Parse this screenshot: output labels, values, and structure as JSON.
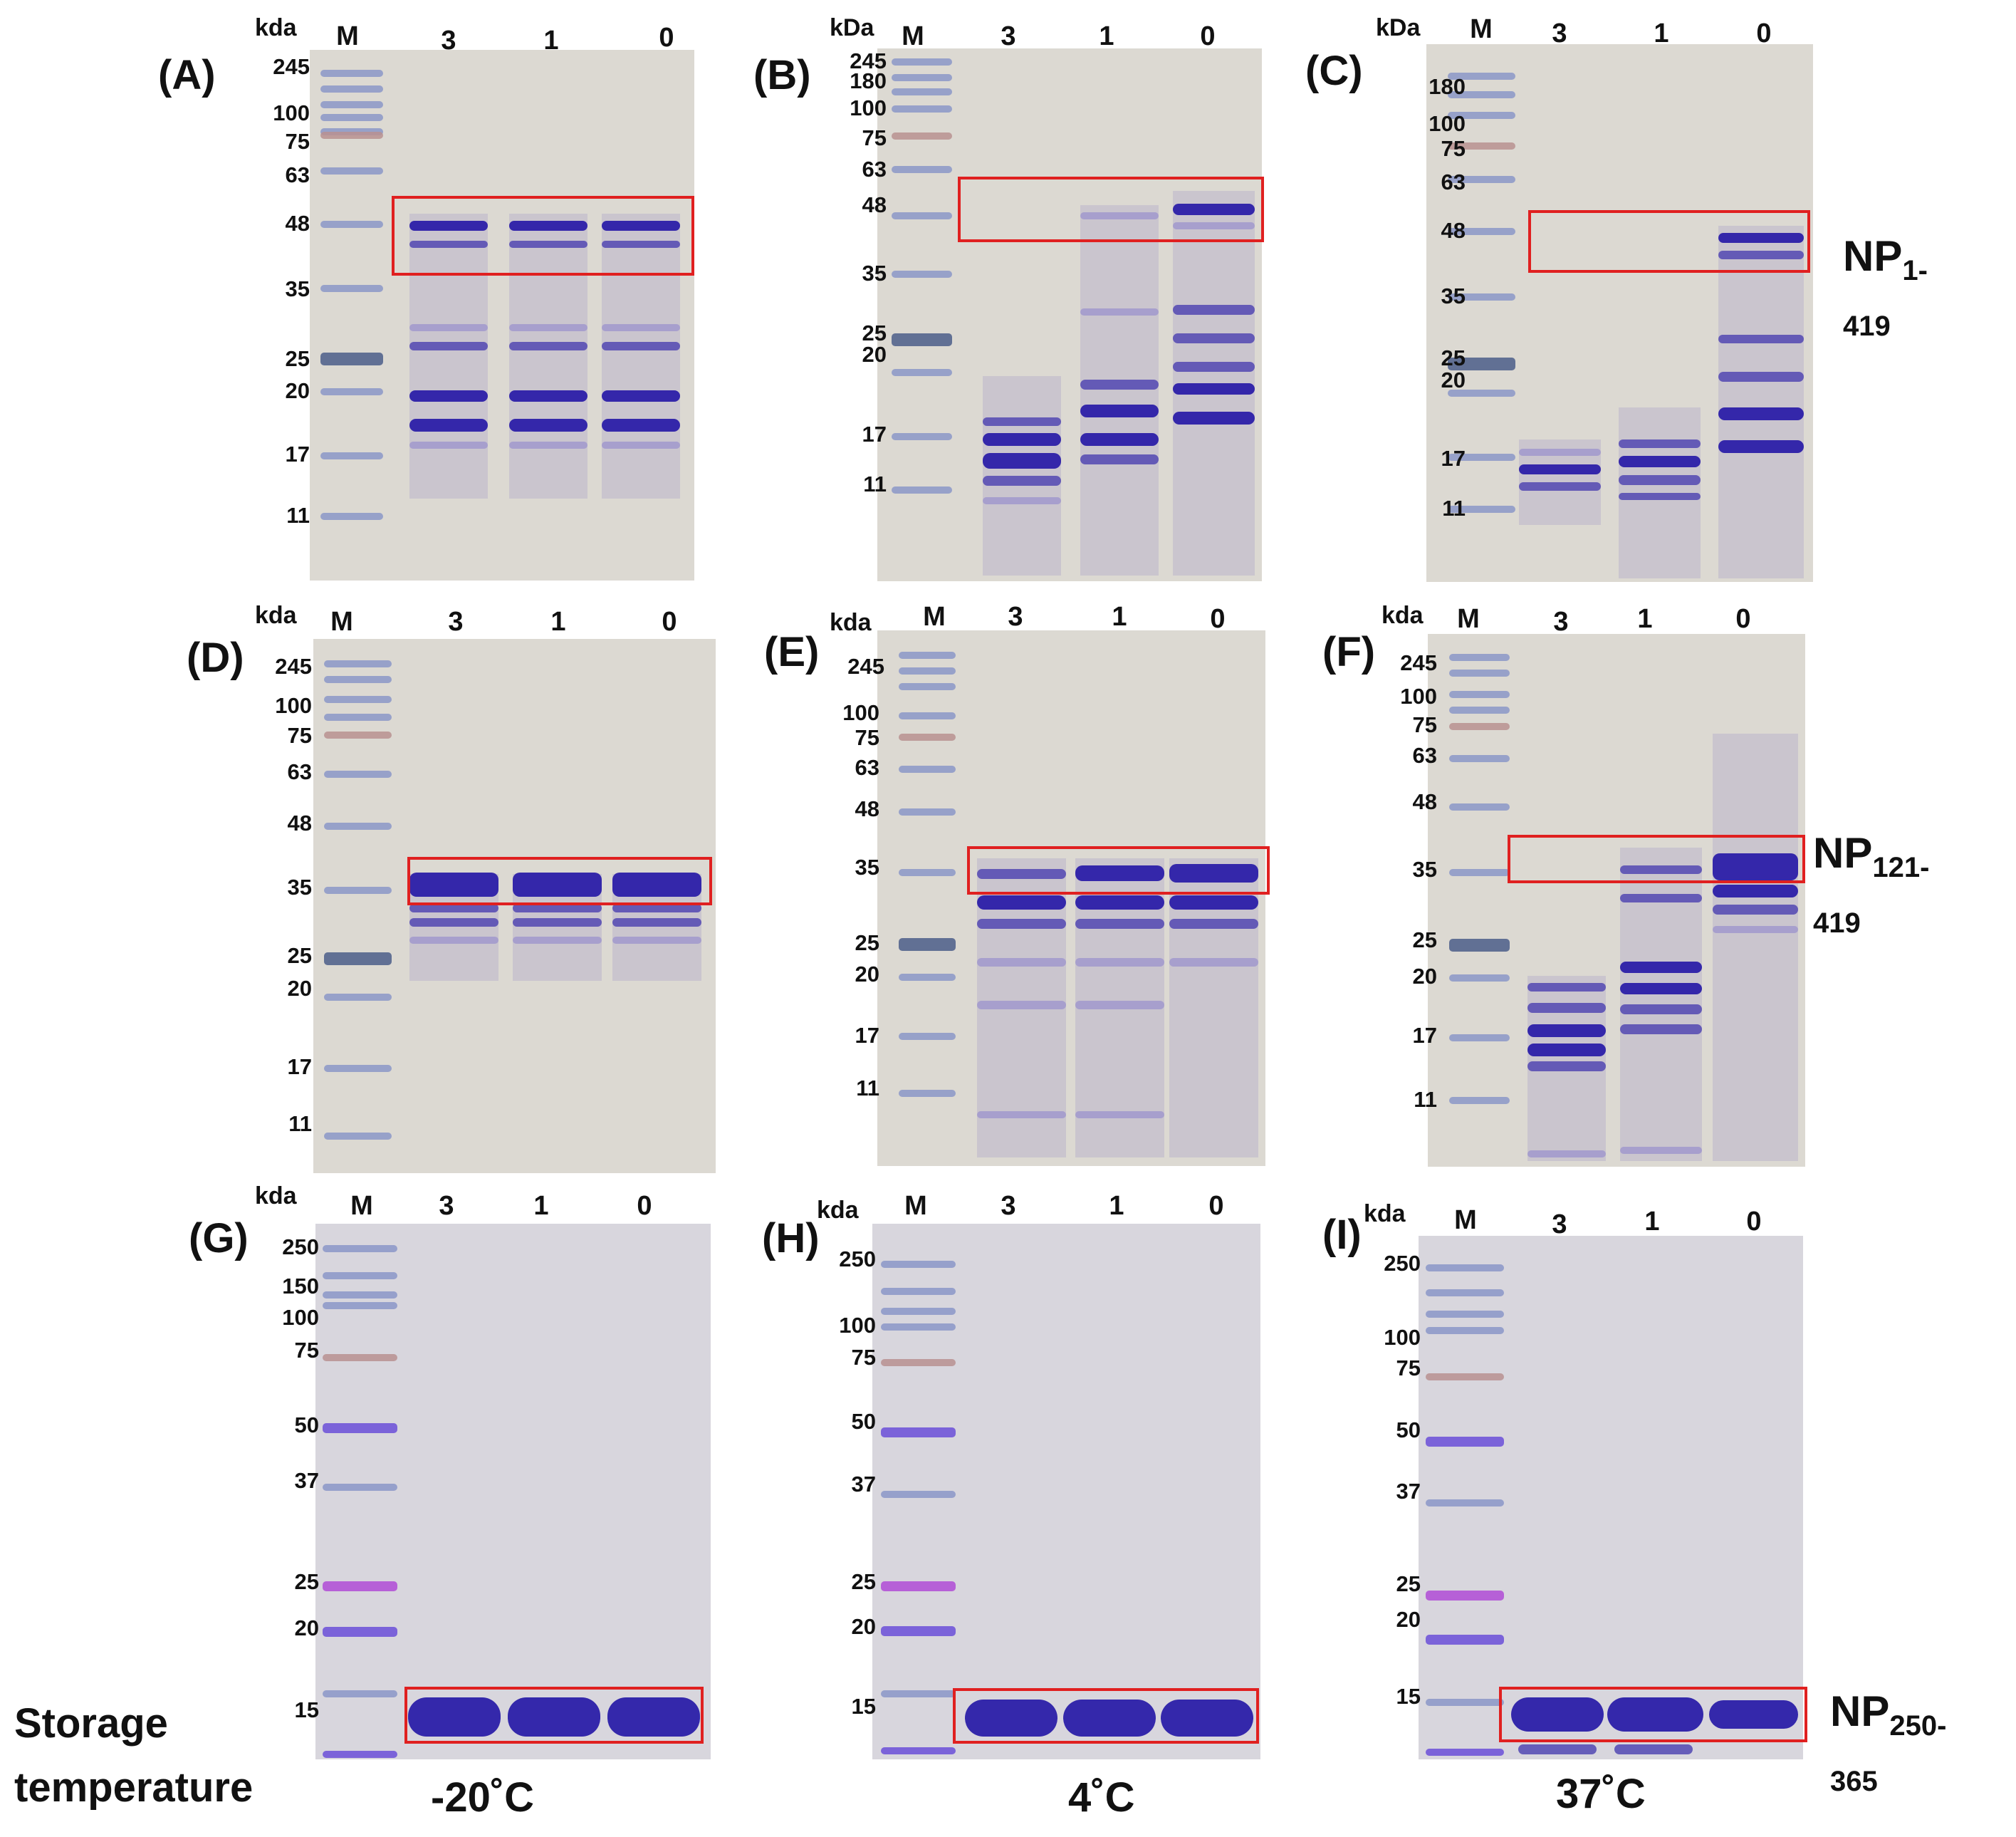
{
  "panels": {
    "A": {
      "label": "(A)",
      "unit": "kda",
      "lanes": [
        "M",
        "3",
        "1",
        "0"
      ],
      "markers": [
        "245",
        "100",
        "75",
        "63",
        "48",
        "35",
        "25",
        "20",
        "17",
        "11"
      ]
    },
    "B": {
      "label": "(B)",
      "unit": "kDa",
      "lanes": [
        "M",
        "3",
        "1",
        "0"
      ],
      "markers": [
        "245",
        "180",
        "100",
        "75",
        "63",
        "48",
        "35",
        "25",
        "20",
        "17",
        "11"
      ]
    },
    "C": {
      "label": "(C)",
      "unit": "kDa",
      "lanes": [
        "M",
        "3",
        "1",
        "0"
      ],
      "markers": [
        "180",
        "100",
        "75",
        "63",
        "48",
        "35",
        "25",
        "20",
        "17",
        "11"
      ]
    },
    "D": {
      "label": "(D)",
      "unit": "kda",
      "lanes": [
        "M",
        "3",
        "1",
        "0"
      ],
      "markers": [
        "245",
        "100",
        "75",
        "63",
        "48",
        "35",
        "25",
        "20",
        "17",
        "11"
      ]
    },
    "E": {
      "label": "(E)",
      "unit": "kda",
      "lanes": [
        "M",
        "3",
        "1",
        "0"
      ],
      "markers": [
        "245",
        "100",
        "75",
        "63",
        "48",
        "35",
        "25",
        "20",
        "17",
        "11"
      ]
    },
    "F": {
      "label": "(F)",
      "unit": "kda",
      "lanes": [
        "M",
        "3",
        "1",
        "0"
      ],
      "markers": [
        "245",
        "100",
        "75",
        "63",
        "48",
        "35",
        "25",
        "20",
        "17",
        "11"
      ]
    },
    "G": {
      "label": "(G)",
      "unit": "kda",
      "lanes": [
        "M",
        "3",
        "1",
        "0"
      ],
      "markers": [
        "250",
        "150",
        "100",
        "75",
        "50",
        "37",
        "25",
        "20",
        "15"
      ]
    },
    "H": {
      "label": "(H)",
      "unit": "kda",
      "lanes": [
        "M",
        "3",
        "1",
        "0"
      ],
      "markers": [
        "250",
        "100",
        "75",
        "50",
        "37",
        "25",
        "20",
        "15"
      ]
    },
    "I": {
      "label": "(I)",
      "unit": "kda",
      "lanes": [
        "M",
        "3",
        "1",
        "0"
      ],
      "markers": [
        "250",
        "100",
        "75",
        "50",
        "37",
        "25",
        "20",
        "15"
      ]
    }
  },
  "protein_labels": {
    "row1": {
      "name": "NP",
      "range": "1-419"
    },
    "row2": {
      "name": "NP",
      "range": "121-419"
    },
    "row3": {
      "name": "NP",
      "range": "250-365"
    }
  },
  "footer": {
    "storage_line1": "Storage",
    "storage_line2": "temperature",
    "temp_col1": "-20˚C",
    "temp_col2": "4˚C",
    "temp_col3": "37˚C"
  },
  "colors": {
    "box_border": "#e02020",
    "gel_background": "#dcd9d2",
    "coomassie_band": "#2b1fa8"
  }
}
